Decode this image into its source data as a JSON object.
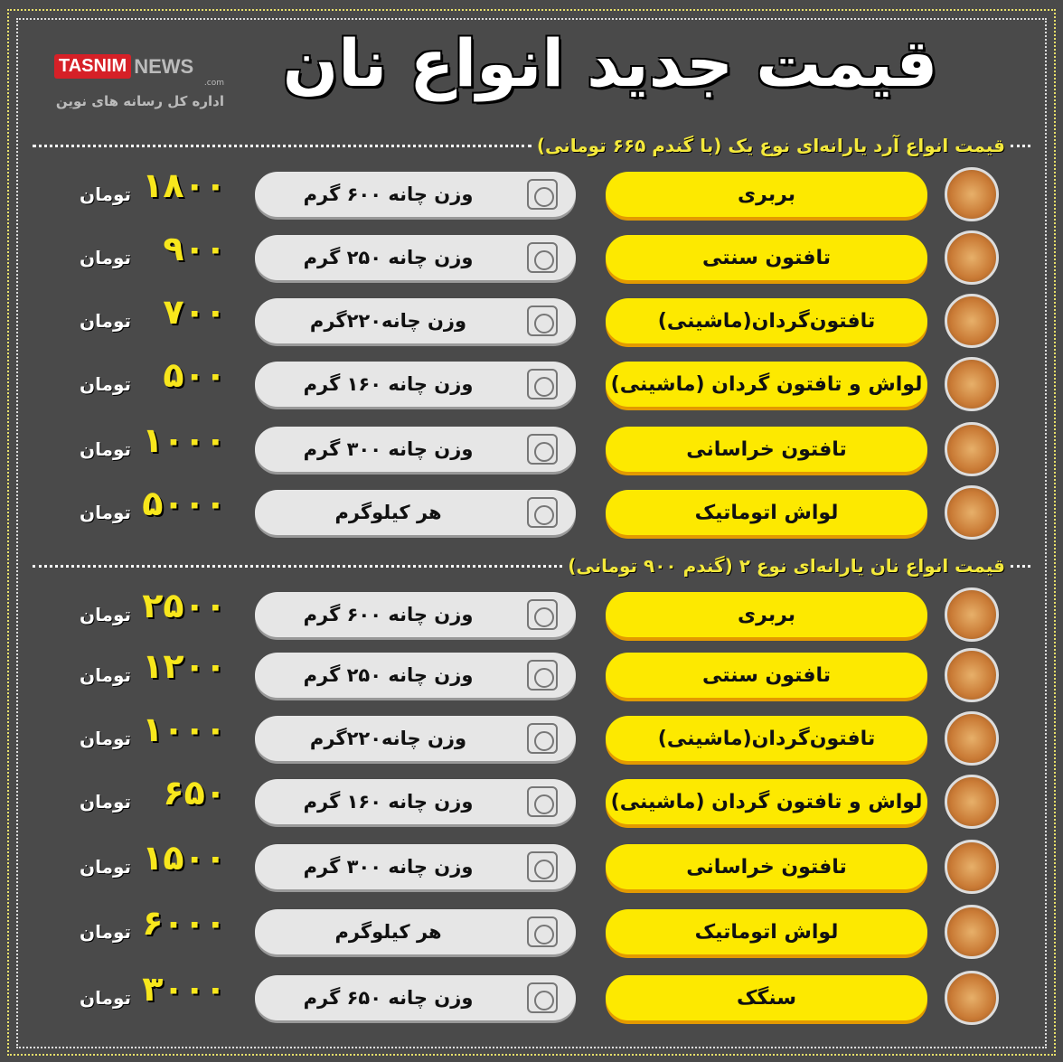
{
  "logo": {
    "brand_red": "TASNIM",
    "brand_gray": "NEWS",
    "domain": ".com",
    "subtitle": "اداره کل رسانه های نوین"
  },
  "title": "قیمت جدید انواع نان",
  "currency": "تومان",
  "colors": {
    "background": "#4a4a4a",
    "name_pill": "#fde900",
    "price": "#f8e71c",
    "weight_pill": "#e6e6e6"
  },
  "sections": [
    {
      "heading": "قیمت انواع آرد یارانه‌ای نوع یک (با گندم ۶۶۵ تومانی)",
      "rows": [
        {
          "name": "بربری",
          "weight": "وزن چانه ۶۰۰ گرم",
          "price": "۱۸۰۰"
        },
        {
          "name": "تافتون سنتی",
          "weight": "وزن چانه ۲۵۰ گرم",
          "price": "۹۰۰"
        },
        {
          "name": "تافتون‌گردان(ماشینی)",
          "weight": "وزن چانه۲۲۰گرم",
          "price": "۷۰۰"
        },
        {
          "name": "لواش و تافتون گردان (ماشینی)",
          "weight": "وزن چانه ۱۶۰ گرم",
          "price": "۵۰۰"
        },
        {
          "name": "تافتون خراسانی",
          "weight": "وزن چانه ۳۰۰ گرم",
          "price": "۱۰۰۰"
        },
        {
          "name": "لواش اتوماتیک",
          "weight": "هر کیلوگرم",
          "price": "۵۰۰۰"
        }
      ]
    },
    {
      "heading": "قیمت انواع نان یارانه‌ای نوع ۲ (گندم ۹۰۰ تومانی)",
      "rows": [
        {
          "name": "بربری",
          "weight": "وزن چانه ۶۰۰ گرم",
          "price": "۲۵۰۰"
        },
        {
          "name": "تافتون سنتی",
          "weight": "وزن چانه ۲۵۰ گرم",
          "price": "۱۲۰۰"
        },
        {
          "name": "تافتون‌گردان(ماشینی)",
          "weight": "وزن چانه۲۲۰گرم",
          "price": "۱۰۰۰"
        },
        {
          "name": "لواش و تافتون گردان (ماشینی)",
          "weight": "وزن چانه ۱۶۰ گرم",
          "price": "۶۵۰"
        },
        {
          "name": "تافتون خراسانی",
          "weight": "وزن چانه ۳۰۰ گرم",
          "price": "۱۵۰۰"
        },
        {
          "name": "لواش اتوماتیک",
          "weight": "هر کیلوگرم",
          "price": "۶۰۰۰"
        },
        {
          "name": "سنگک",
          "weight": "وزن چانه ۶۵۰ گرم",
          "price": "۳۰۰۰"
        }
      ]
    }
  ]
}
